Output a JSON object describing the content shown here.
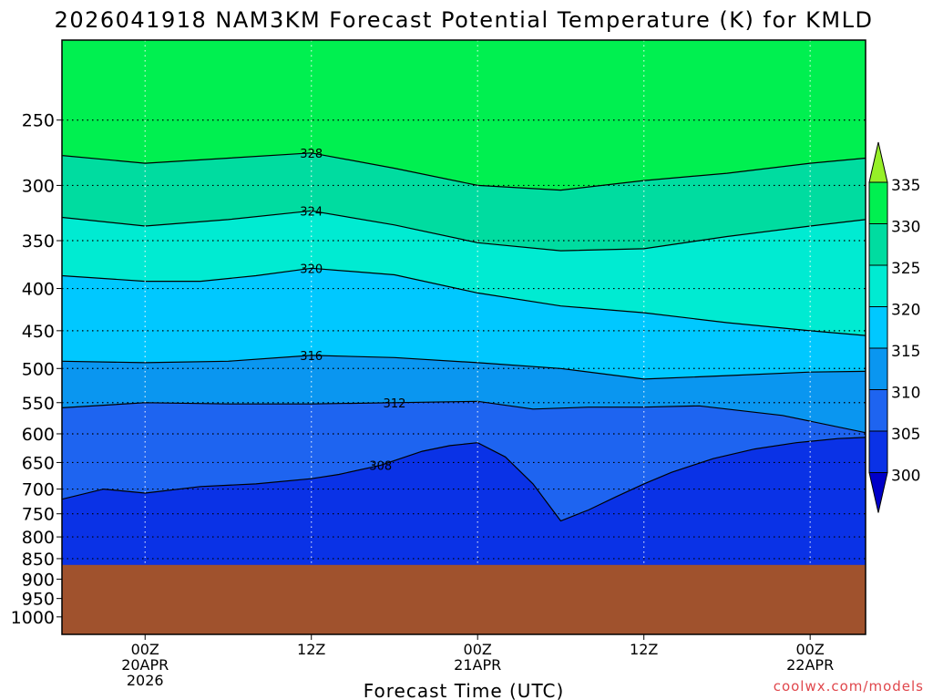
{
  "chart_data": {
    "type": "contour-time-height",
    "title": "2026041918 NAM3KM Forecast Potential Temperature (K) for KMLD",
    "xlabel": "Forecast Time (UTC)",
    "ylabel": "",
    "y_scale": "log-pressure",
    "ylim": [
      1050,
      200
    ],
    "xlim": [
      -6,
      52
    ],
    "y_ticks": [
      250,
      300,
      350,
      400,
      450,
      500,
      550,
      600,
      650,
      700,
      750,
      800,
      850,
      900,
      950,
      1000
    ],
    "y_ticklabels": [
      "250",
      "300",
      "350",
      "400",
      "450",
      "500",
      "550",
      "600",
      "650",
      "700",
      "750",
      "800",
      "850",
      "900",
      "950",
      "1000"
    ],
    "x_ticks": [
      {
        "x": 0,
        "lines": [
          "00Z",
          "20APR",
          "2026"
        ]
      },
      {
        "x": 12,
        "lines": [
          "12Z"
        ]
      },
      {
        "x": 24,
        "lines": [
          "00Z",
          "21APR"
        ]
      },
      {
        "x": 36,
        "lines": [
          "12Z"
        ]
      },
      {
        "x": 48,
        "lines": [
          "00Z",
          "22APR"
        ]
      }
    ],
    "grid": "dotted",
    "surface_pressure": 865,
    "colorbar": {
      "levels": [
        300,
        305,
        310,
        315,
        320,
        325,
        330,
        335
      ],
      "labels": [
        "300",
        "305",
        "310",
        "315",
        "320",
        "325",
        "330",
        "335"
      ],
      "colors": [
        "#0000c8",
        "#0a32e6",
        "#1e64f0",
        "#0a96f0",
        "#00c8ff",
        "#00ebd2",
        "#00dca0",
        "#00e678",
        "#00f050",
        "#96f028"
      ]
    },
    "terrain_color": "#a0522d",
    "contour_lines": [
      {
        "value": 308,
        "label": "308",
        "points": [
          [
            -6,
            720
          ],
          [
            -3,
            700
          ],
          [
            0,
            708
          ],
          [
            4,
            695
          ],
          [
            8,
            690
          ],
          [
            12,
            680
          ],
          [
            14,
            672
          ],
          [
            17,
            655
          ],
          [
            20,
            630
          ],
          [
            22,
            620
          ],
          [
            24,
            615
          ],
          [
            26,
            640
          ],
          [
            28,
            690
          ],
          [
            30,
            765
          ],
          [
            32,
            742
          ],
          [
            34,
            715
          ],
          [
            36,
            690
          ],
          [
            38,
            668
          ],
          [
            41,
            643
          ],
          [
            44,
            626
          ],
          [
            47,
            615
          ],
          [
            50,
            608
          ],
          [
            52,
            606
          ]
        ]
      },
      {
        "value": 312,
        "label": "312",
        "points": [
          [
            -6,
            558
          ],
          [
            0,
            550
          ],
          [
            6,
            552
          ],
          [
            12,
            552
          ],
          [
            18,
            550
          ],
          [
            24,
            548
          ],
          [
            28,
            560
          ],
          [
            32,
            557
          ],
          [
            36,
            557
          ],
          [
            40,
            555
          ],
          [
            46,
            570
          ],
          [
            52,
            598
          ]
        ]
      },
      {
        "value": 316,
        "label": "316",
        "points": [
          [
            -6,
            490
          ],
          [
            0,
            492
          ],
          [
            6,
            490
          ],
          [
            12,
            482
          ],
          [
            18,
            485
          ],
          [
            24,
            492
          ],
          [
            30,
            500
          ],
          [
            36,
            515
          ],
          [
            42,
            510
          ],
          [
            48,
            505
          ],
          [
            52,
            504
          ]
        ]
      },
      {
        "value": 320,
        "label": "320",
        "points": [
          [
            -6,
            386
          ],
          [
            0,
            392
          ],
          [
            4,
            392
          ],
          [
            8,
            386
          ],
          [
            12,
            378
          ],
          [
            18,
            385
          ],
          [
            24,
            405
          ],
          [
            30,
            420
          ],
          [
            36,
            428
          ],
          [
            42,
            440
          ],
          [
            48,
            450
          ],
          [
            52,
            456
          ]
        ]
      },
      {
        "value": 324,
        "label": "324",
        "points": [
          [
            -6,
            328
          ],
          [
            0,
            336
          ],
          [
            6,
            330
          ],
          [
            12,
            322
          ],
          [
            18,
            335
          ],
          [
            24,
            352
          ],
          [
            30,
            360
          ],
          [
            36,
            358
          ],
          [
            42,
            346
          ],
          [
            48,
            336
          ],
          [
            52,
            330
          ]
        ]
      },
      {
        "value": 328,
        "label": "328",
        "points": [
          [
            -6,
            276
          ],
          [
            0,
            282
          ],
          [
            6,
            278
          ],
          [
            12,
            274
          ],
          [
            18,
            286
          ],
          [
            24,
            300
          ],
          [
            30,
            304
          ],
          [
            36,
            296
          ],
          [
            42,
            290
          ],
          [
            48,
            282
          ],
          [
            52,
            278
          ]
        ]
      }
    ]
  },
  "credit": "coolwx.com/models"
}
